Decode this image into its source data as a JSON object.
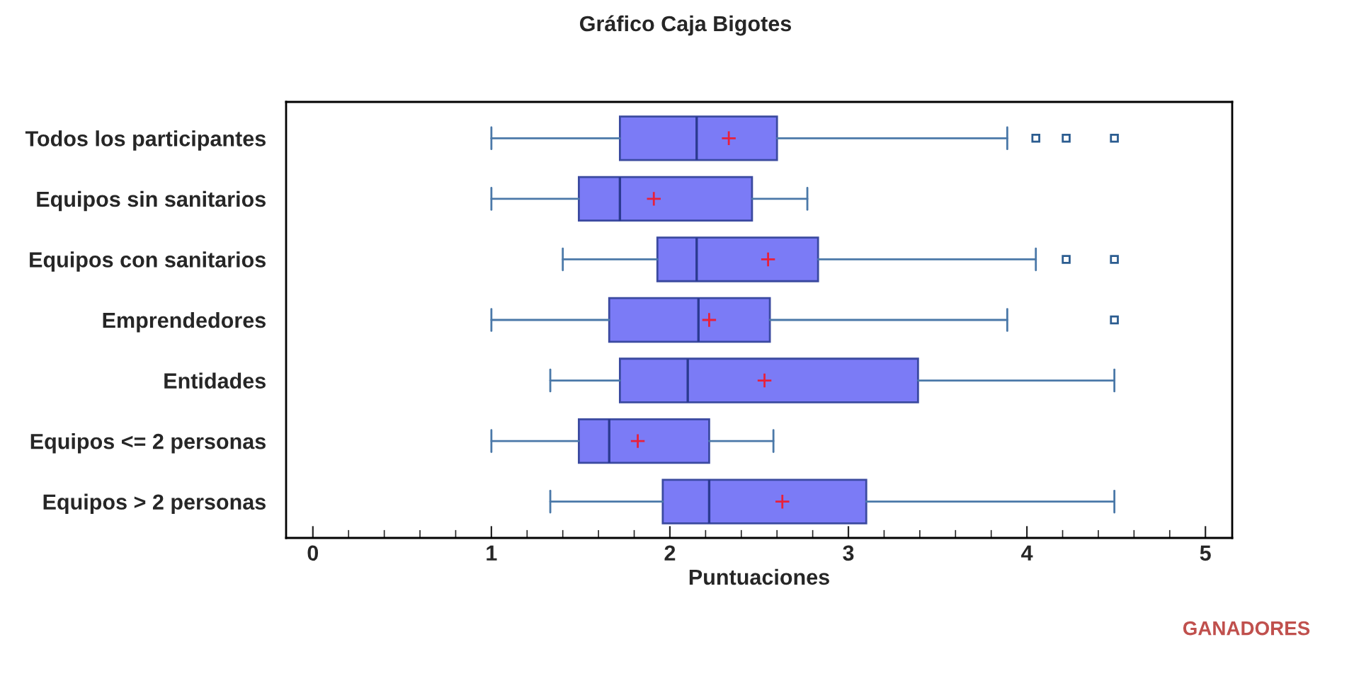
{
  "chart_data": {
    "type": "box",
    "orientation": "horizontal",
    "title": "Gráfico Caja Bigotes",
    "xlabel": "Puntuaciones",
    "categories": [
      "Todos los participantes",
      "Equipos sin sanitarios",
      "Equipos con sanitarios",
      "Emprendedores",
      "Entidades",
      "Equipos <= 2 personas",
      "Equipos > 2 personas"
    ],
    "boxes": [
      {
        "low": 1.0,
        "q1": 1.72,
        "median": 2.15,
        "q3": 2.6,
        "high": 3.89,
        "mean": 2.33,
        "outliers": [
          4.05,
          4.22,
          4.49
        ]
      },
      {
        "low": 1.0,
        "q1": 1.49,
        "median": 1.72,
        "q3": 2.46,
        "high": 2.77,
        "mean": 1.91
      },
      {
        "low": 1.4,
        "q1": 1.93,
        "median": 2.15,
        "q3": 2.83,
        "high": 4.05,
        "mean": 2.55,
        "outliers": [
          4.22,
          4.49
        ]
      },
      {
        "low": 1.0,
        "q1": 1.66,
        "median": 2.16,
        "q3": 2.56,
        "high": 3.89,
        "mean": 2.22,
        "outliers": [
          4.49
        ]
      },
      {
        "low": 1.33,
        "q1": 1.72,
        "median": 2.1,
        "q3": 3.39,
        "high": 4.49,
        "mean": 2.53
      },
      {
        "low": 1.0,
        "q1": 1.49,
        "median": 1.66,
        "q3": 2.22,
        "high": 2.58,
        "mean": 1.82
      },
      {
        "low": 1.33,
        "q1": 1.96,
        "median": 2.22,
        "q3": 3.1,
        "high": 4.49,
        "mean": 2.63
      }
    ],
    "xlim": [
      -0.15,
      5.15
    ],
    "xticks": [
      0,
      1,
      2,
      3,
      4,
      5
    ],
    "annotations": [
      "GANADORES"
    ]
  }
}
